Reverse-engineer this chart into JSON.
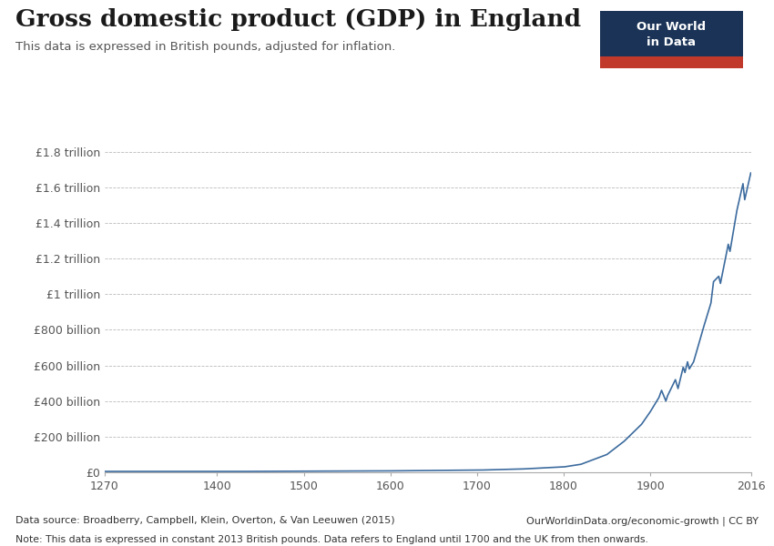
{
  "title": "Gross domestic product (GDP) in England",
  "subtitle": "This data is expressed in British pounds, adjusted for inflation.",
  "data_source": "Data source: Broadberry, Campbell, Klein, Overton, & Van Leeuwen (2015)",
  "url": "OurWorldinData.org/economic-growth | CC BY",
  "note": "Note: This data is expressed in constant 2013 British pounds. Data refers to England until 1700 and the UK from then onwards.",
  "line_color": "#3c6b9e",
  "background_color": "#ffffff",
  "grid_color": "#aaaaaa",
  "title_color": "#1a1a1a",
  "subtitle_color": "#555555",
  "footer_color": "#333333",
  "logo_bg": "#1a3357",
  "logo_red": "#c0392b",
  "x_ticks": [
    1270,
    1400,
    1500,
    1600,
    1700,
    1800,
    1900,
    2016
  ],
  "xlim": [
    1270,
    2016
  ],
  "ylim": [
    0,
    1900000000000
  ],
  "ytick_values": [
    0,
    200000000000,
    400000000000,
    600000000000,
    800000000000,
    1000000000000,
    1200000000000,
    1400000000000,
    1600000000000,
    1800000000000
  ],
  "ytick_labels": [
    "£0",
    "£200 billion",
    "£400 billion",
    "£600 billion",
    "£800 billion",
    "£1 trillion",
    "£1.2 trillion",
    "£1.4 trillion",
    "£1.6 trillion",
    "£1.8 trillion"
  ],
  "key_points": {
    "1270": 5000000000,
    "1400": 4500000000,
    "1500": 6000000000,
    "1600": 8000000000,
    "1650": 10000000000,
    "1700": 12000000000,
    "1750": 18000000000,
    "1800": 30000000000,
    "1820": 45000000000,
    "1850": 100000000000,
    "1870": 175000000000,
    "1890": 270000000000,
    "1900": 340000000000,
    "1910": 420000000000,
    "1913": 460000000000,
    "1918": 400000000000,
    "1920": 430000000000,
    "1929": 520000000000,
    "1932": 470000000000,
    "1938": 590000000000,
    "1940": 560000000000,
    "1943": 620000000000,
    "1945": 580000000000,
    "1950": 620000000000,
    "1960": 790000000000,
    "1970": 950000000000,
    "1973": 1070000000000,
    "1979": 1100000000000,
    "1981": 1060000000000,
    "1990": 1280000000000,
    "1992": 1240000000000,
    "2000": 1470000000000,
    "2007": 1620000000000,
    "2009": 1530000000000,
    "2016": 1680000000000
  }
}
